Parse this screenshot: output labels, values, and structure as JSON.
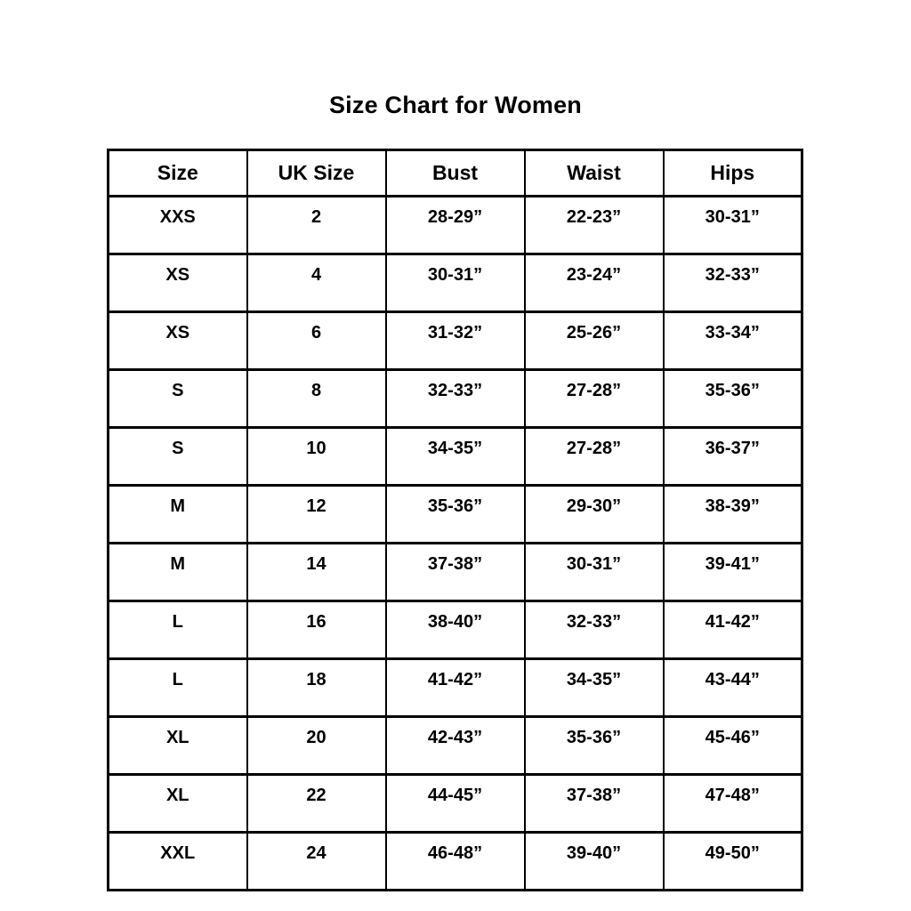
{
  "chart_data": {
    "type": "table",
    "title": "Size Chart for Women",
    "columns": [
      "Size",
      "UK Size",
      "Bust",
      "Waist",
      "Hips"
    ],
    "rows": [
      [
        "XXS",
        "2",
        "28-29”",
        "22-23”",
        "30-31”"
      ],
      [
        "XS",
        "4",
        "30-31”",
        "23-24”",
        "32-33”"
      ],
      [
        "XS",
        "6",
        "31-32”",
        "25-26”",
        "33-34”"
      ],
      [
        "S",
        "8",
        "32-33”",
        "27-28”",
        "35-36”"
      ],
      [
        "S",
        "10",
        "34-35”",
        "27-28”",
        "36-37”"
      ],
      [
        "M",
        "12",
        "35-36”",
        "29-30”",
        "38-39”"
      ],
      [
        "M",
        "14",
        "37-38”",
        "30-31”",
        "39-41”"
      ],
      [
        "L",
        "16",
        "38-40”",
        "32-33”",
        "41-42”"
      ],
      [
        "L",
        "18",
        "41-42”",
        "34-35”",
        "43-44”"
      ],
      [
        "XL",
        "20",
        "42-43”",
        "35-36”",
        "45-46”"
      ],
      [
        "XL",
        "22",
        "44-45”",
        "37-38”",
        "47-48”"
      ],
      [
        "XXL",
        "24",
        "46-48”",
        "39-40”",
        "49-50”"
      ]
    ]
  }
}
